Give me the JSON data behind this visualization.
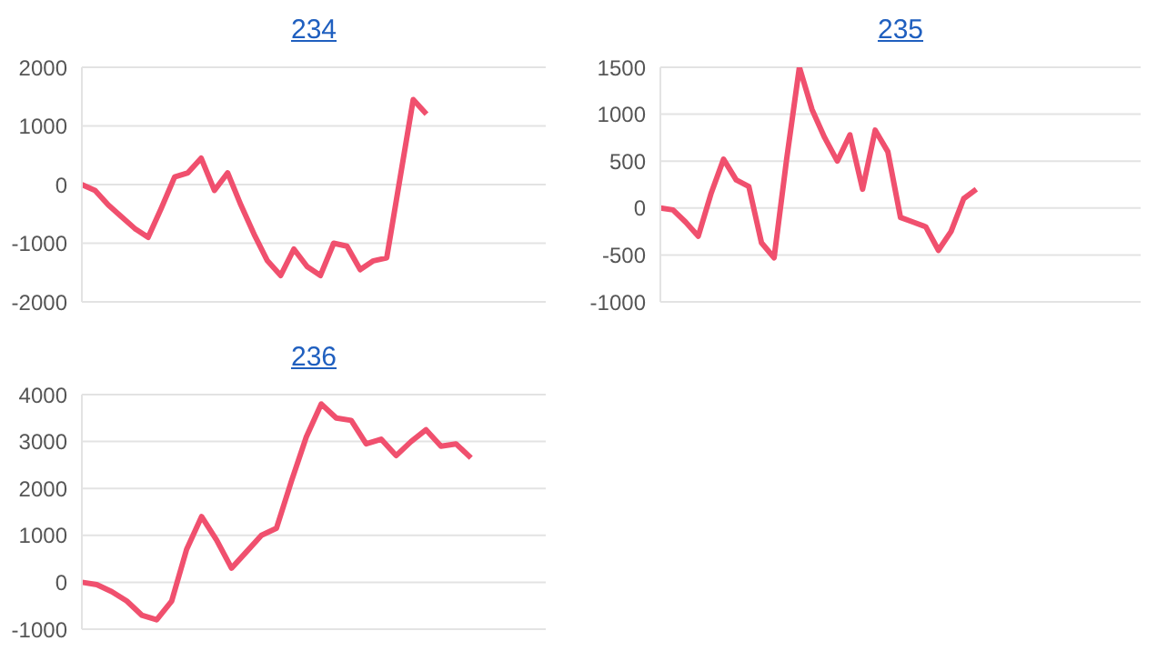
{
  "chart_data": [
    {
      "type": "line",
      "title": "234",
      "categories": [
        null,
        null,
        null,
        null,
        null,
        null,
        null,
        null,
        null,
        null,
        null,
        null,
        null,
        null,
        null,
        null,
        null,
        null,
        null,
        null,
        null,
        null,
        null,
        null,
        null,
        null,
        null,
        null,
        null,
        null,
        null,
        null,
        null,
        null,
        null,
        null
      ],
      "series": [
        {
          "color": "#f0506e",
          "values": [
            0,
            -100,
            -350,
            -550,
            -750,
            -900,
            -400,
            130,
            200,
            450,
            -100,
            200,
            -350,
            -850,
            -1300,
            -1550,
            -1100,
            -1400,
            -1550,
            -1000,
            -1050,
            -1450,
            -1300,
            -1250,
            100,
            1450,
            1200,
            null,
            null,
            null,
            null,
            null,
            null,
            null,
            null,
            null
          ]
        }
      ],
      "ylim": [
        -2000,
        2000
      ],
      "yticks": [
        -2000,
        -1000,
        0,
        1000,
        2000
      ],
      "grid": "y",
      "tick_labels": "y",
      "marker": "none",
      "line_style": "solid",
      "legend": false
    },
    {
      "type": "line",
      "title": "235",
      "categories": [
        null,
        null,
        null,
        null,
        null,
        null,
        null,
        null,
        null,
        null,
        null,
        null,
        null,
        null,
        null,
        null,
        null,
        null,
        null,
        null,
        null,
        null,
        null,
        null,
        null,
        null,
        null,
        null,
        null,
        null,
        null,
        null,
        null,
        null,
        null,
        null,
        null,
        null,
        null
      ],
      "series": [
        {
          "color": "#f0506e",
          "values": [
            0,
            -20,
            -150,
            -300,
            150,
            520,
            300,
            230,
            -370,
            -530,
            530,
            1500,
            1050,
            750,
            500,
            780,
            200,
            830,
            600,
            -100,
            -150,
            -200,
            -450,
            -250,
            100,
            200,
            null,
            null,
            null,
            null,
            null,
            null,
            null,
            null,
            null,
            null,
            null,
            null,
            null
          ]
        }
      ],
      "ylim": [
        -1000,
        1500
      ],
      "yticks": [
        -1000,
        -500,
        0,
        500,
        1000,
        1500
      ],
      "grid": "y",
      "tick_labels": "y",
      "marker": "none",
      "line_style": "solid",
      "legend": false
    },
    {
      "type": "line",
      "title": "236",
      "categories": [
        null,
        null,
        null,
        null,
        null,
        null,
        null,
        null,
        null,
        null,
        null,
        null,
        null,
        null,
        null,
        null,
        null,
        null,
        null,
        null,
        null,
        null,
        null,
        null,
        null,
        null,
        null,
        null,
        null,
        null,
        null,
        null
      ],
      "series": [
        {
          "color": "#f0506e",
          "values": [
            0,
            -50,
            -200,
            -400,
            -700,
            -800,
            -400,
            700,
            1400,
            900,
            300,
            650,
            1000,
            1150,
            2150,
            3100,
            3800,
            3500,
            3450,
            2950,
            3050,
            2700,
            3000,
            3250,
            2900,
            2950,
            2650,
            null,
            null,
            null,
            null,
            null
          ]
        }
      ],
      "ylim": [
        -1000,
        4000
      ],
      "yticks": [
        -1000,
        0,
        1000,
        2000,
        3000,
        4000
      ],
      "grid": "y",
      "tick_labels": "y",
      "marker": "none",
      "line_style": "solid",
      "legend": false
    }
  ]
}
